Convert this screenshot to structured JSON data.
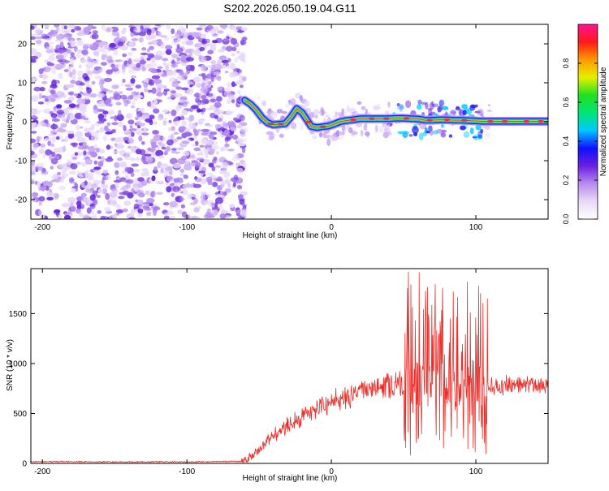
{
  "page_title": "S202.2026.050.19.04.G11",
  "colors": {
    "snr_line": "#e8312c",
    "cb_stops": [
      "#ffffff",
      "#e9d9f6",
      "#b68cef",
      "#6a1fe0",
      "#1010ff",
      "#00c8ff",
      "#00e676",
      "#20e020",
      "#e6ef00",
      "#ff9a00",
      "#ff1a1a",
      "#ff1493"
    ],
    "noise_palette": [
      "#e7d8fb",
      "#cdb2f5",
      "#b58ef0",
      "#9a68ea",
      "#7c3ee4",
      "#6224db"
    ],
    "ridge_outer": "#1f1aff",
    "ridge_cyan": "#00ccff",
    "ridge_green": "#2ee05a",
    "ridge_yellow": "#e6ef00",
    "ridge_core": "#ff2a1a"
  },
  "chart_data": [
    {
      "type": "heatmap",
      "title": "S202.2026.050.19.04.G11",
      "xlabel": "Height of straight line (km)",
      "ylabel": "Frequency (Hz)",
      "xlim": [
        -208,
        150
      ],
      "ylim": [
        -25,
        25
      ],
      "xticks": [
        -200,
        -100,
        0,
        100
      ],
      "yticks": [
        -20,
        -10,
        0,
        10,
        20
      ],
      "noise_region_km": [
        -208,
        -60
      ],
      "ridge": {
        "x": [
          -60,
          -56,
          -52,
          -48,
          -44,
          -40,
          -36,
          -32,
          -28,
          -24,
          -20,
          -17,
          -14,
          -10,
          -6,
          -2,
          2,
          6,
          10,
          15,
          20,
          25,
          30,
          35,
          40,
          45,
          50,
          55,
          60,
          65,
          70,
          75,
          80,
          85,
          90,
          95,
          100,
          105,
          110,
          115,
          120,
          130,
          140,
          150
        ],
        "y": [
          5.5,
          4.5,
          3,
          1,
          -0.3,
          -0.8,
          -0.6,
          -0.5,
          1.2,
          3.4,
          2.2,
          0.5,
          -1.2,
          -1.5,
          -1.3,
          -1.1,
          -0.6,
          0,
          0.3,
          0.5,
          0.8,
          0.8,
          0.8,
          0.8,
          0.8,
          0.9,
          0.9,
          0.8,
          0.7,
          0.4,
          0.4,
          0.5,
          0.5,
          0.4,
          0.4,
          0.3,
          0.2,
          0.1,
          0.1,
          0.1,
          0.1,
          0.1,
          0.1,
          0.1
        ]
      },
      "colorbar": {
        "label": "Normalized spectral amplitude",
        "range": [
          0,
          1
        ],
        "ticks": [
          "0.0",
          "0.2",
          "0.4",
          "0.6",
          "0.8"
        ]
      }
    },
    {
      "type": "line",
      "xlabel": "Height of straight line (km)",
      "ylabel": "SNR (10 * v/v)",
      "xlim": [
        -208,
        150
      ],
      "ylim": [
        0,
        1950
      ],
      "xticks": [
        -200,
        -100,
        0,
        100
      ],
      "yticks": [
        0,
        500,
        1000,
        1500
      ],
      "series": [
        {
          "name": "SNR",
          "color": "#e8312c",
          "envelope_x": [
            -208,
            -150,
            -100,
            -62,
            -55,
            -45,
            -35,
            -25,
            -15,
            -5,
            5,
            15,
            25,
            35,
            45,
            50,
            55,
            60,
            70,
            80,
            90,
            95,
            100,
            105,
            110,
            120,
            130,
            140,
            150
          ],
          "envelope_y": [
            18,
            15,
            15,
            20,
            70,
            220,
            330,
            430,
            520,
            580,
            640,
            700,
            745,
            775,
            800,
            805,
            810,
            800,
            790,
            785,
            790,
            800,
            800,
            790,
            780,
            785,
            790,
            800,
            790
          ]
        }
      ]
    }
  ]
}
